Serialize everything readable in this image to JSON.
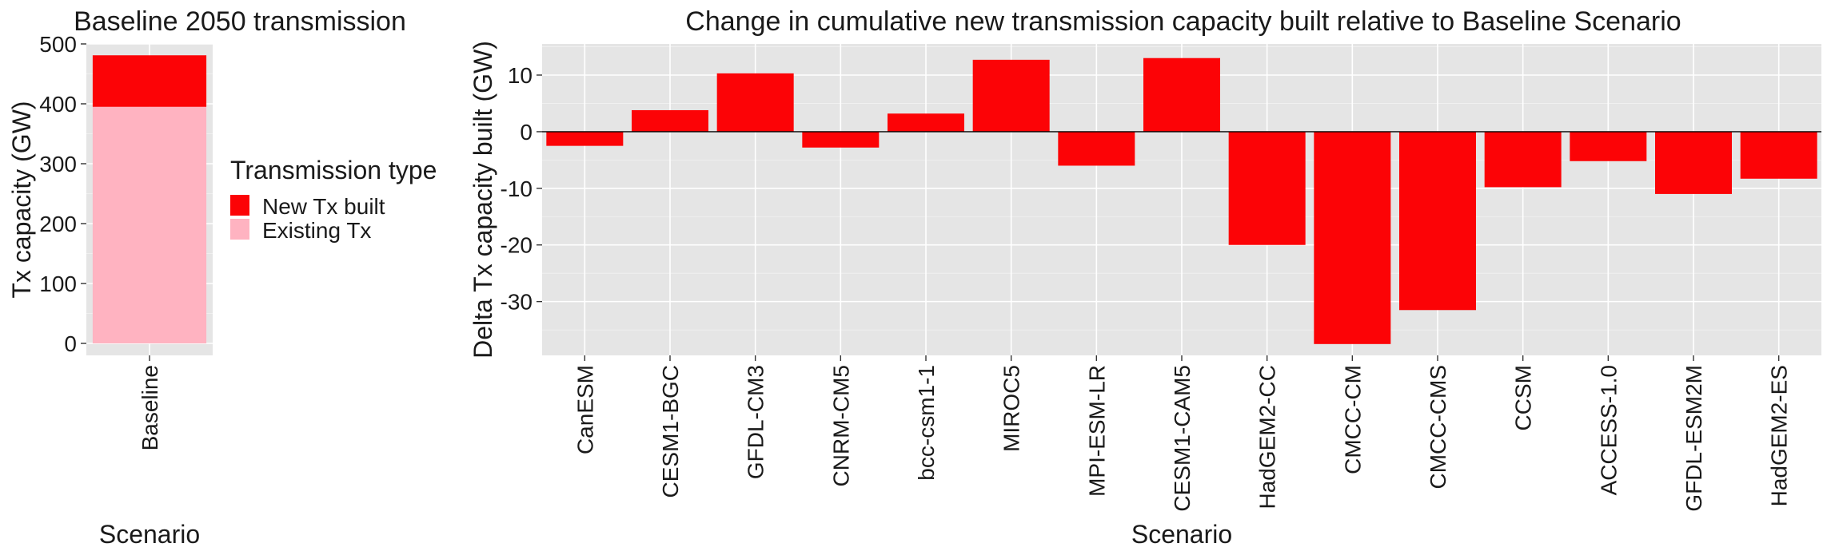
{
  "colors": {
    "new_tx": "#fc0306",
    "existing_tx": "#ffb3c1",
    "panel_background": "#e5e5e5",
    "grid": "#ffffff",
    "zero_line": "#000000"
  },
  "chart_data": [
    {
      "type": "bar",
      "stacked": true,
      "title": "Baseline 2050 transmission",
      "xlabel": "Scenario",
      "ylabel": "Tx capacity (GW)",
      "ylim": [
        -20,
        500
      ],
      "yticks": [
        0,
        100,
        200,
        300,
        400,
        500
      ],
      "categories": [
        "Baseline"
      ],
      "series": [
        {
          "name": "Existing Tx",
          "color": "#ffb3c1",
          "values": [
            395
          ]
        },
        {
          "name": "New Tx built",
          "color": "#fc0306",
          "values": [
            86
          ]
        }
      ],
      "legend": {
        "title": "Transmission type",
        "position": "right",
        "entries": [
          {
            "label": "New Tx built",
            "color": "#fc0306"
          },
          {
            "label": "Existing Tx",
            "color": "#ffb3c1"
          }
        ]
      }
    },
    {
      "type": "bar",
      "title": "Change in cumulative new transmission capacity built relative to Baseline Scenario",
      "xlabel": "Scenario",
      "ylabel": "Delta Tx capacity built (GW)",
      "ylim": [
        -39.5,
        15.5
      ],
      "yticks": [
        -30,
        -20,
        -10,
        0,
        10
      ],
      "ytick_labels": [
        "-30",
        "-20",
        "-10",
        "0",
        "10"
      ],
      "zero_line": true,
      "categories": [
        "CanESM",
        "CESM1-BGC",
        "GFDL-CM3",
        "CNRM-CM5",
        "bcc-csm1-1",
        "MIROC5",
        "MPI-ESM-LR",
        "CESM1-CAM5",
        "HadGEM2-CC",
        "CMCC-CM",
        "CMCC-CMS",
        "CCSM",
        "ACCESS-1.0",
        "GFDL-ESM2M",
        "HadGEM2-ES"
      ],
      "values": [
        -2.5,
        3.8,
        10.3,
        -2.8,
        3.2,
        12.7,
        -6.0,
        13.0,
        -20.0,
        -37.5,
        -31.5,
        -9.8,
        -5.2,
        -11.0,
        -8.3
      ],
      "color": "#fc0306"
    }
  ]
}
